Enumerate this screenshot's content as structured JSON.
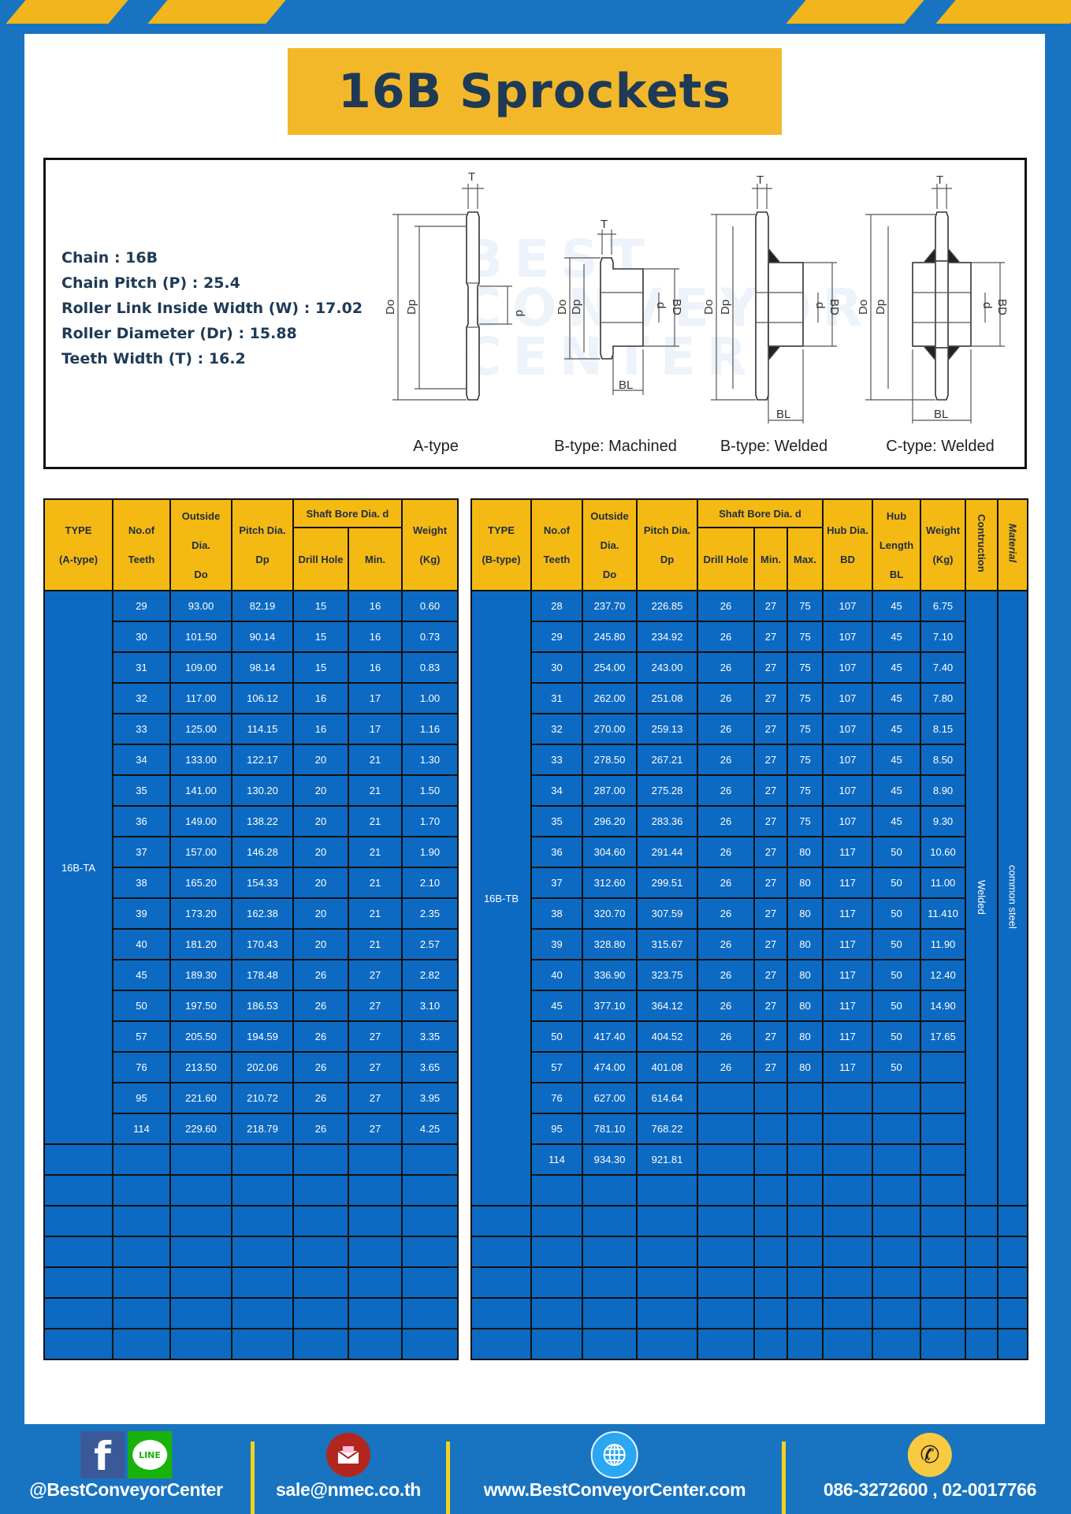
{
  "title": "16B Sprockets",
  "specs": [
    "Chain  :  16B",
    "Chain Pitch (P)  :  25.4",
    "Roller Link Inside Width (W)  :  17.02",
    "Roller Diameter (Dr)  : 15.88",
    "Teeth Width (T)  :  16.2"
  ],
  "diagram": {
    "watermark": "BEST CONVEYOR CENTER",
    "dim_labels": {
      "T": "T",
      "Do": "Do",
      "Dp": "Dp",
      "d": "d",
      "BD": "BD",
      "BL": "BL"
    },
    "types": [
      "A-type",
      "B-type: Machined",
      "B-type: Welded",
      "C-type: Welded"
    ]
  },
  "colors": {
    "background": "#1874c1",
    "accent_yellow": "#f3b82a",
    "cell_blue": "#0d6ac2",
    "title_text": "#1e3a56"
  },
  "table_a": {
    "headers": {
      "type": [
        "TYPE",
        "(A-type)"
      ],
      "teeth": [
        "No.of",
        "Teeth"
      ],
      "outside": [
        "Outside",
        "Dia.",
        "Do"
      ],
      "pitch": [
        "Pitch Dia.",
        "Dp"
      ],
      "bore": "Shaft Bore Dia. d",
      "drill": "Drill Hole",
      "min": "Min.",
      "weight": [
        "Weight",
        "(Kg)"
      ]
    },
    "type_value": "16B-TA",
    "rows": [
      [
        "29",
        "93.00",
        "82.19",
        "15",
        "16",
        "0.60"
      ],
      [
        "30",
        "101.50",
        "90.14",
        "15",
        "16",
        "0.73"
      ],
      [
        "31",
        "109.00",
        "98.14",
        "15",
        "16",
        "0.83"
      ],
      [
        "32",
        "117.00",
        "106.12",
        "16",
        "17",
        "1.00"
      ],
      [
        "33",
        "125.00",
        "114.15",
        "16",
        "17",
        "1.16"
      ],
      [
        "34",
        "133.00",
        "122.17",
        "20",
        "21",
        "1.30"
      ],
      [
        "35",
        "141.00",
        "130.20",
        "20",
        "21",
        "1.50"
      ],
      [
        "36",
        "149.00",
        "138.22",
        "20",
        "21",
        "1.70"
      ],
      [
        "37",
        "157.00",
        "146.28",
        "20",
        "21",
        "1.90"
      ],
      [
        "38",
        "165.20",
        "154.33",
        "20",
        "21",
        "2.10"
      ],
      [
        "39",
        "173.20",
        "162.38",
        "20",
        "21",
        "2.35"
      ],
      [
        "40",
        "181.20",
        "170.43",
        "20",
        "21",
        "2.57"
      ],
      [
        "45",
        "189.30",
        "178.48",
        "26",
        "27",
        "2.82"
      ],
      [
        "50",
        "197.50",
        "186.53",
        "26",
        "27",
        "3.10"
      ],
      [
        "57",
        "205.50",
        "194.59",
        "26",
        "27",
        "3.35"
      ],
      [
        "76",
        "213.50",
        "202.06",
        "26",
        "27",
        "3.65"
      ],
      [
        "95",
        "221.60",
        "210.72",
        "26",
        "27",
        "3.95"
      ],
      [
        "114",
        "229.60",
        "218.79",
        "26",
        "27",
        "4.25"
      ]
    ],
    "empty_rows": 7
  },
  "table_b": {
    "headers": {
      "type": [
        "TYPE",
        "(B-type)"
      ],
      "teeth": [
        "No.of",
        "Teeth"
      ],
      "outside": [
        "Outside",
        "Dia.",
        "Do"
      ],
      "pitch": [
        "Pitch Dia.",
        "Dp"
      ],
      "bore": "Shaft Bore Dia. d",
      "drill": "Drill Hole",
      "min": "Min.",
      "max": "Max.",
      "hub_dia": [
        "Hub Dia.",
        "BD"
      ],
      "hub_len": [
        "Hub",
        "Length",
        "BL"
      ],
      "weight": [
        "Weight",
        "(Kg)"
      ],
      "construction": "Contruction",
      "material": "Material"
    },
    "type_value": "16B-TB",
    "construction_value": "Welded",
    "material_value": "common steel",
    "rows": [
      [
        "28",
        "237.70",
        "226.85",
        "26",
        "27",
        "75",
        "107",
        "45",
        "6.75"
      ],
      [
        "29",
        "245.80",
        "234.92",
        "26",
        "27",
        "75",
        "107",
        "45",
        "7.10"
      ],
      [
        "30",
        "254.00",
        "243.00",
        "26",
        "27",
        "75",
        "107",
        "45",
        "7.40"
      ],
      [
        "31",
        "262.00",
        "251.08",
        "26",
        "27",
        "75",
        "107",
        "45",
        "7.80"
      ],
      [
        "32",
        "270.00",
        "259.13",
        "26",
        "27",
        "75",
        "107",
        "45",
        "8.15"
      ],
      [
        "33",
        "278.50",
        "267.21",
        "26",
        "27",
        "75",
        "107",
        "45",
        "8.50"
      ],
      [
        "34",
        "287.00",
        "275.28",
        "26",
        "27",
        "75",
        "107",
        "45",
        "8.90"
      ],
      [
        "35",
        "296.20",
        "283.36",
        "26",
        "27",
        "75",
        "107",
        "45",
        "9.30"
      ],
      [
        "36",
        "304.60",
        "291.44",
        "26",
        "27",
        "80",
        "117",
        "50",
        "10.60"
      ],
      [
        "37",
        "312.60",
        "299.51",
        "26",
        "27",
        "80",
        "117",
        "50",
        "11.00"
      ],
      [
        "38",
        "320.70",
        "307.59",
        "26",
        "27",
        "80",
        "117",
        "50",
        "11.410"
      ],
      [
        "39",
        "328.80",
        "315.67",
        "26",
        "27",
        "80",
        "117",
        "50",
        "11.90"
      ],
      [
        "40",
        "336.90",
        "323.75",
        "26",
        "27",
        "80",
        "117",
        "50",
        "12.40"
      ],
      [
        "45",
        "377.10",
        "364.12",
        "26",
        "27",
        "80",
        "117",
        "50",
        "14.90"
      ],
      [
        "50",
        "417.40",
        "404.52",
        "26",
        "27",
        "80",
        "117",
        "50",
        "17.65"
      ],
      [
        "57",
        "474.00",
        "401.08",
        "26",
        "27",
        "80",
        "117",
        "50",
        ""
      ],
      [
        "76",
        "627.00",
        "614.64",
        "",
        "",
        "",
        "",
        "",
        ""
      ],
      [
        "95",
        "781.10",
        "768.22",
        "",
        "",
        "",
        "",
        "",
        ""
      ],
      [
        "114",
        "934.30",
        "921.81",
        "",
        "",
        "",
        "",
        "",
        ""
      ]
    ],
    "empty_rows": 5
  },
  "footer": {
    "social": "@BestConveyorCenter",
    "email": "sale@nmec.co.th",
    "website": "www.BestConveyorCenter.com",
    "phone": "086-3272600 , 02-0017766",
    "line_badge": "LINE",
    "facebook_badge": "f"
  }
}
